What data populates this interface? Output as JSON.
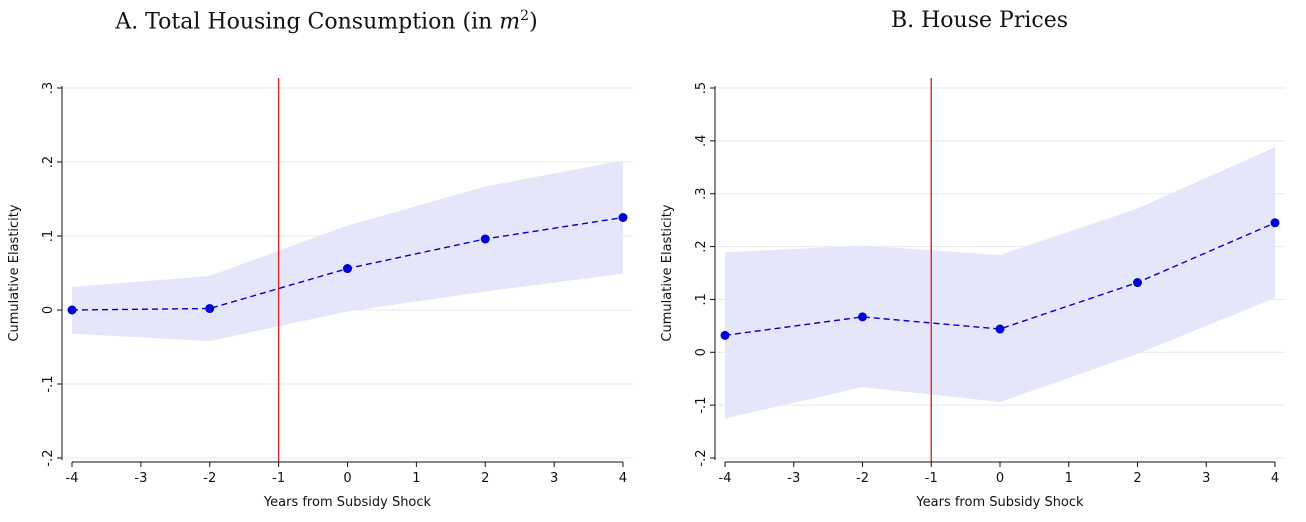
{
  "chart_data": [
    {
      "type": "line",
      "title": "A. Total Housing Consumption (in",
      "title_unit": "m",
      "title_sup": "2",
      "title_close": ")",
      "xlabel": "Years from Subsidy Shock",
      "ylabel": "Cumulative Elasticity",
      "xlim": [
        -4,
        4
      ],
      "ylim": [
        -0.2,
        0.3
      ],
      "x_ticks": [
        -4,
        -3,
        -2,
        -1,
        0,
        1,
        2,
        3,
        4
      ],
      "x_tick_labels": [
        "-4",
        "-3",
        "-2",
        "-1",
        "0",
        "1",
        "2",
        "3",
        "4"
      ],
      "y_ticks": [
        -0.2,
        -0.1,
        0,
        0.1,
        0.2,
        0.3
      ],
      "y_tick_labels": [
        "-.2",
        "-.1",
        "0",
        ".1",
        ".2",
        ".3"
      ],
      "grid": true,
      "vline_x": -1,
      "series": [
        {
          "x": [
            -4,
            -2,
            0,
            2,
            4
          ],
          "y": [
            0.0,
            0.002,
            0.056,
            0.096,
            0.125
          ]
        }
      ],
      "ci_band": {
        "x": [
          -4,
          -2,
          0,
          2,
          4
        ],
        "lower": [
          -0.032,
          -0.042,
          -0.002,
          0.025,
          0.049
        ],
        "upper": [
          0.031,
          0.046,
          0.114,
          0.167,
          0.202
        ]
      },
      "colors": {
        "line": "#0000d4",
        "band": "#e6e6fa",
        "vline": "#d62728",
        "grid": "#e8e8e8"
      }
    },
    {
      "type": "line",
      "title": "B. House Prices",
      "xlabel": "Years from Subsidy Shock",
      "ylabel": "Cumulative Elasticity",
      "xlim": [
        -4,
        4
      ],
      "ylim": [
        -0.2,
        0.5
      ],
      "x_ticks": [
        -4,
        -3,
        -2,
        -1,
        0,
        1,
        2,
        3,
        4
      ],
      "x_tick_labels": [
        "-4",
        "-3",
        "-2",
        "-1",
        "0",
        "1",
        "2",
        "3",
        "4"
      ],
      "y_ticks": [
        -0.2,
        -0.1,
        0,
        0.1,
        0.2,
        0.3,
        0.4,
        0.5
      ],
      "y_tick_labels": [
        "-.2",
        "-.1",
        "0",
        ".1",
        ".2",
        ".3",
        ".4",
        ".5"
      ],
      "grid": true,
      "vline_x": -1,
      "series": [
        {
          "x": [
            -4,
            -2,
            0,
            2,
            4
          ],
          "y": [
            0.032,
            0.067,
            0.044,
            0.132,
            0.245
          ]
        }
      ],
      "ci_band": {
        "x": [
          -4,
          -2,
          0,
          2,
          4
        ],
        "lower": [
          -0.125,
          -0.066,
          -0.094,
          -0.003,
          0.103
        ],
        "upper": [
          0.189,
          0.202,
          0.184,
          0.272,
          0.388
        ]
      },
      "colors": {
        "line": "#0000d4",
        "band": "#e6e6fa",
        "vline": "#d62728",
        "grid": "#e8e8e8"
      }
    }
  ]
}
